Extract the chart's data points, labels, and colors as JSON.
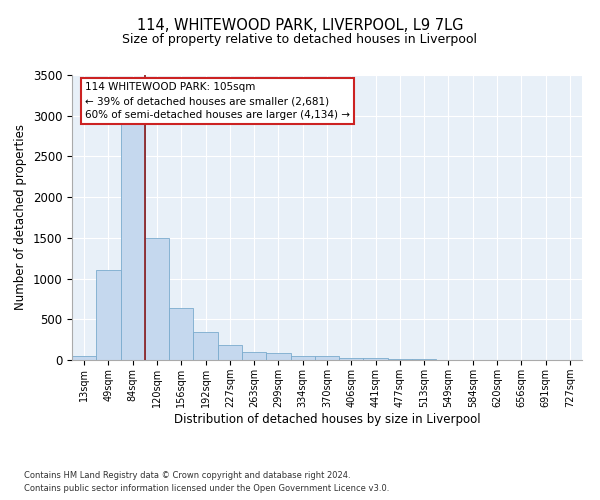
{
  "title": "114, WHITEWOOD PARK, LIVERPOOL, L9 7LG",
  "subtitle": "Size of property relative to detached houses in Liverpool",
  "xlabel": "Distribution of detached houses by size in Liverpool",
  "ylabel": "Number of detached properties",
  "bar_color": "#c5d8ee",
  "bar_edge_color": "#7aabce",
  "background_color": "#e8f0f8",
  "grid_color": "#ffffff",
  "bin_labels": [
    "13sqm",
    "49sqm",
    "84sqm",
    "120sqm",
    "156sqm",
    "192sqm",
    "227sqm",
    "263sqm",
    "299sqm",
    "334sqm",
    "370sqm",
    "406sqm",
    "441sqm",
    "477sqm",
    "513sqm",
    "549sqm",
    "584sqm",
    "620sqm",
    "656sqm",
    "691sqm",
    "727sqm"
  ],
  "bar_values": [
    50,
    1100,
    2920,
    1500,
    640,
    350,
    190,
    95,
    80,
    55,
    50,
    30,
    20,
    15,
    10,
    5,
    5,
    3,
    2,
    1,
    0
  ],
  "ylim": [
    0,
    3500
  ],
  "yticks": [
    0,
    500,
    1000,
    1500,
    2000,
    2500,
    3000,
    3500
  ],
  "vline_x": 2.5,
  "vline_color": "#8b1a1a",
  "annotation_line1": "114 WHITEWOOD PARK: 105sqm",
  "annotation_line2": "← 39% of detached houses are smaller (2,681)",
  "annotation_line3": "60% of semi-detached houses are larger (4,134) →",
  "footer_line1": "Contains HM Land Registry data © Crown copyright and database right 2024.",
  "footer_line2": "Contains public sector information licensed under the Open Government Licence v3.0."
}
